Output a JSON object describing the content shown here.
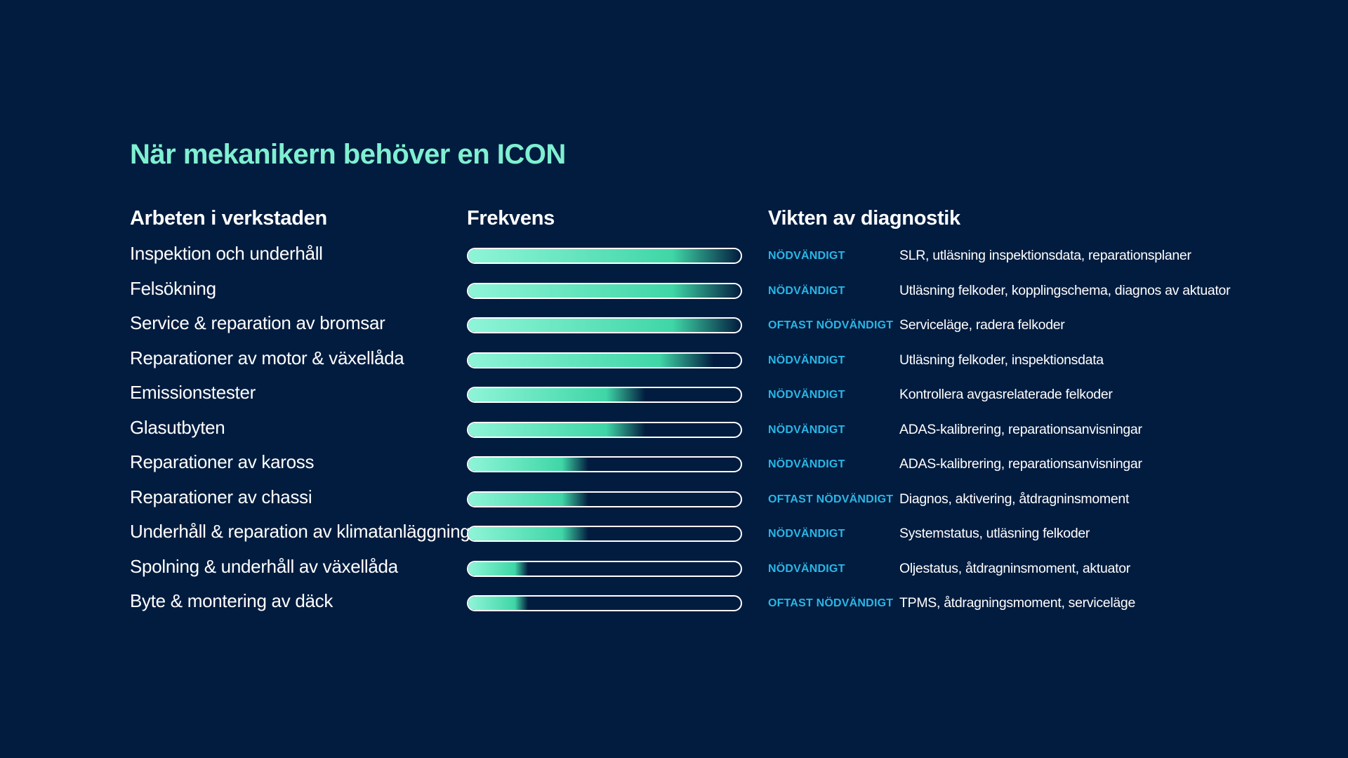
{
  "title": "När mekanikern behöver en ICON",
  "headers": {
    "task": "Arbeten i verkstaden",
    "frequency": "Frekvens",
    "diagnostics": "Vikten av diagnostik"
  },
  "colors": {
    "background": "#021c3f",
    "title": "#7ff0d1",
    "level": "#2bb6e6",
    "bar_light": "#8ff5d8",
    "bar_mid": "#3fd6a6"
  },
  "chart_data": {
    "type": "bar",
    "xlim": [
      0,
      1
    ],
    "categories": [
      "Inspektion och underhåll",
      "Felsökning",
      "Service & reparation av bromsar",
      "Reparationer av motor & växellåda",
      "Emissionstester",
      "Glasutbyten",
      "Reparationer av kaross",
      "Reparationer av chassi",
      "Underhåll & reparation av klimatanläggning",
      "Spolning & underhåll av växellåda",
      "Byte & montering av däck"
    ],
    "values": [
      1.0,
      1.0,
      1.0,
      0.9,
      0.65,
      0.65,
      0.44,
      0.44,
      0.44,
      0.22,
      0.22
    ]
  },
  "rows": [
    {
      "level": "NÖDVÄNDIGT",
      "desc": "SLR, utläsning inspektionsdata, reparationsplaner"
    },
    {
      "level": "NÖDVÄNDIGT",
      "desc": "Utläsning felkoder, kopplingschema, diagnos av aktuator"
    },
    {
      "level": "OFTAST NÖDVÄNDIGT",
      "desc": "Serviceläge, radera felkoder"
    },
    {
      "level": "NÖDVÄNDIGT",
      "desc": "Utläsning felkoder, inspektionsdata"
    },
    {
      "level": "NÖDVÄNDIGT",
      "desc": "Kontrollera avgasrelaterade felkoder"
    },
    {
      "level": "NÖDVÄNDIGT",
      "desc": "ADAS-kalibrering, reparationsanvisningar"
    },
    {
      "level": "NÖDVÄNDIGT",
      "desc": "ADAS-kalibrering, reparationsanvisningar"
    },
    {
      "level": "OFTAST NÖDVÄNDIGT",
      "desc": "Diagnos, aktivering, åtdragninsmoment"
    },
    {
      "level": "NÖDVÄNDIGT",
      "desc": "Systemstatus, utläsning felkoder"
    },
    {
      "level": "NÖDVÄNDIGT",
      "desc": "Oljestatus, åtdragninsmoment, aktuator"
    },
    {
      "level": "OFTAST NÖDVÄNDIGT",
      "desc": "TPMS, åtdragningsmoment, serviceläge"
    }
  ]
}
